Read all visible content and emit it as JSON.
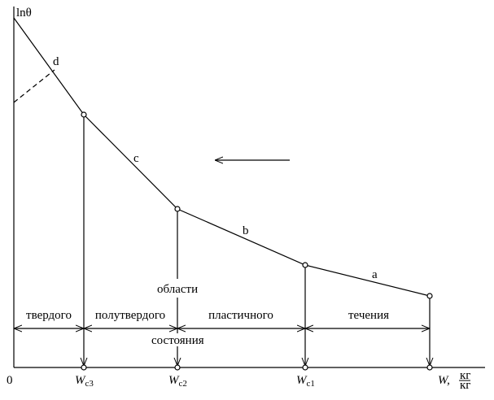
{
  "axes": {
    "y_label": "lnθ",
    "origin": "0",
    "x_label": {
      "main": "W,",
      "numerator": "кг",
      "denominator": "кг"
    }
  },
  "x_marks": [
    {
      "main": "W",
      "sub": "c3"
    },
    {
      "main": "W",
      "sub": "c2"
    },
    {
      "main": "W",
      "sub": "c1"
    }
  ],
  "segments": [
    "d",
    "c",
    "b",
    "a"
  ],
  "regions": {
    "top": "области",
    "bottom": "состояния",
    "names": [
      "твердого",
      "полутвердого",
      "пластичного",
      "течения"
    ]
  }
}
